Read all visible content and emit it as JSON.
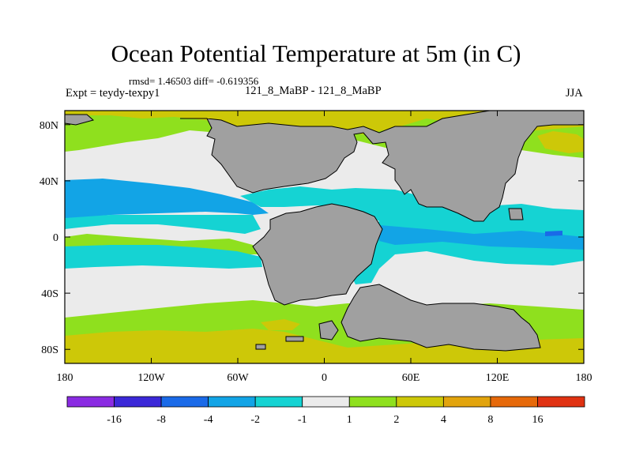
{
  "title": "Ocean Potential Temperature at 5m (in C)",
  "stats_text": "rmsd= 1.46503 diff= -0.619356",
  "experiment_label": "Expt = teydy-texpy1",
  "case_label": "121_8_MaBP - 121_8_MaBP",
  "season": "JJA",
  "map": {
    "x_ticks": [
      "180",
      "120W",
      "60W",
      "0",
      "60E",
      "120E",
      "180"
    ],
    "y_ticks": [
      "80N",
      "40N",
      "0",
      "40S",
      "80S"
    ]
  },
  "colorbar": {
    "labels": [
      "-16",
      "-8",
      "-4",
      "-2",
      "-1",
      "1",
      "2",
      "4",
      "8",
      "16"
    ],
    "colors": [
      "#8a2be2",
      "#3b28d8",
      "#1a6ae8",
      "#12a4e6",
      "#15d3d3",
      "#ebebeb",
      "#8fe01e",
      "#cdc808",
      "#e2a40d",
      "#e6690a",
      "#e03212"
    ]
  },
  "palette": {
    "land": "#a0a0a0",
    "neutral": "#ebebeb",
    "cyan": "#15d3d3",
    "light_blue": "#12a4e6",
    "blue": "#1a6ae8",
    "green": "#8fe01e",
    "yellow": "#cdc808"
  }
}
